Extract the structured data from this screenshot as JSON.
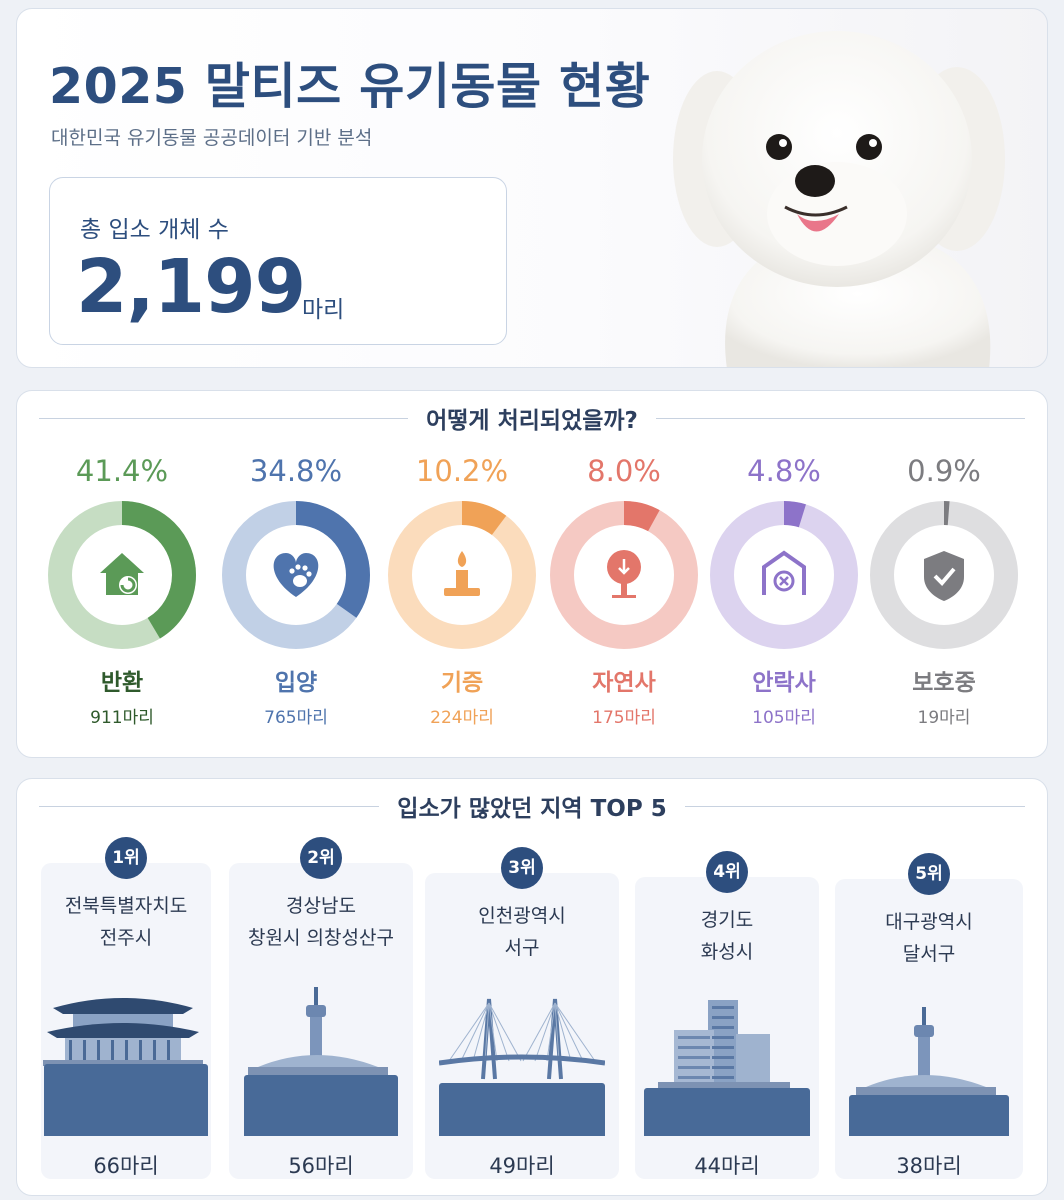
{
  "header": {
    "title": "2025 말티즈 유기동물 현황",
    "subtitle": "대한민국 유기동물 공공데이터 기반 분석",
    "total_label": "총 입소 개체 수",
    "total_value": "2,199",
    "total_unit": "마리"
  },
  "outcomes": {
    "heading": "어떻게 처리되었을까?",
    "items": [
      {
        "name": "반환",
        "pct": "41.4%",
        "fraction": 0.414,
        "count": "911마리",
        "color": "#5b9a57",
        "track": "#c6ddc3",
        "icon": "house-return-icon"
      },
      {
        "name": "입양",
        "pct": "34.8%",
        "fraction": 0.348,
        "count": "765마리",
        "color": "#4f74ad",
        "track": "#c1d0e6",
        "icon": "heart-paw-icon"
      },
      {
        "name": "기증",
        "pct": "10.2%",
        "fraction": 0.102,
        "count": "224마리",
        "color": "#f0a257",
        "track": "#fbdcbc",
        "icon": "candle-icon"
      },
      {
        "name": "자연사",
        "pct": "8.0%",
        "fraction": 0.08,
        "count": "175마리",
        "color": "#e3766a",
        "track": "#f5c9c3",
        "icon": "tree-icon"
      },
      {
        "name": "안락사",
        "pct": "4.8%",
        "fraction": 0.048,
        "count": "105마리",
        "color": "#8d73c9",
        "track": "#dcd3ef",
        "icon": "shelter-x-icon"
      },
      {
        "name": "보호중",
        "pct": "0.9%",
        "fraction": 0.009,
        "count": "19마리",
        "color": "#7c7c80",
        "track": "#dedee0",
        "icon": "shield-check-icon"
      }
    ]
  },
  "regions": {
    "heading": "입소가 많았던 지역 TOP 5",
    "items": [
      {
        "rank": "1위",
        "line1": "전북특별자치도",
        "line2": "전주시",
        "value": 66,
        "count": "66마리",
        "icon": "hanok-gate-icon"
      },
      {
        "rank": "2위",
        "line1": "경상남도",
        "line2": "창원시 의창성산구",
        "value": 56,
        "count": "56마리",
        "icon": "tower-icon"
      },
      {
        "rank": "3위",
        "line1": "인천광역시",
        "line2": "서구",
        "value": 49,
        "count": "49마리",
        "icon": "bridge-icon"
      },
      {
        "rank": "4위",
        "line1": "경기도",
        "line2": "화성시",
        "value": 44,
        "count": "44마리",
        "icon": "buildings-icon"
      },
      {
        "rank": "5위",
        "line1": "대구광역시",
        "line2": "달서구",
        "value": 38,
        "count": "38마리",
        "icon": "tower-icon"
      }
    ]
  },
  "chart_data": [
    {
      "type": "pie",
      "title": "어떻게 처리되었을까?",
      "categories": [
        "반환",
        "입양",
        "기증",
        "자연사",
        "안락사",
        "보호중"
      ],
      "values": [
        41.4,
        34.8,
        10.2,
        8.0,
        4.8,
        0.9
      ],
      "counts": [
        911,
        765,
        224,
        175,
        105,
        19
      ]
    },
    {
      "type": "bar",
      "title": "입소가 많았던 지역 TOP 5",
      "categories": [
        "전북특별자치도 전주시",
        "경상남도 창원시 의창성산구",
        "인천광역시 서구",
        "경기도 화성시",
        "대구광역시 달서구"
      ],
      "values": [
        66,
        56,
        49,
        44,
        38
      ]
    }
  ]
}
